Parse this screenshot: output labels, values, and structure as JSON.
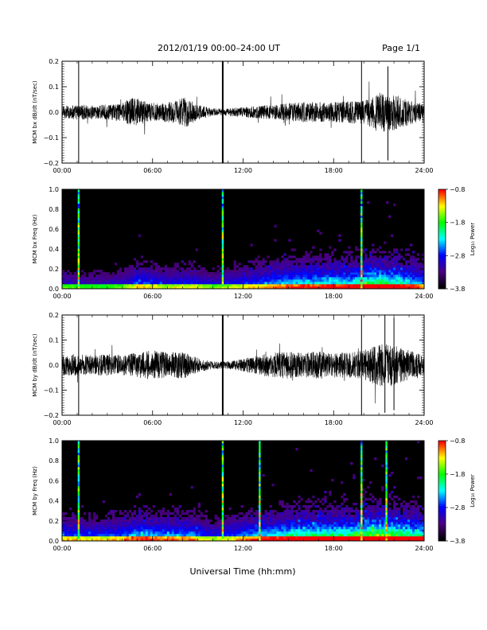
{
  "header": {
    "title": "2012/01/19   00:00–24:00 UT",
    "page_label": "Page 1/1"
  },
  "footer": {
    "xlabel": "Universal Time (hh:mm)"
  },
  "colors": {
    "trace": "#000000",
    "spectrogram_background": "#000000",
    "colormap": [
      "#000000",
      "#4b0082",
      "#0000ff",
      "#00ffff",
      "#00ff00",
      "#ffff00",
      "#ff0000"
    ]
  },
  "chart_data": [
    {
      "id": "bx_timeseries",
      "type": "line",
      "ylabel": "MCM bx dB/dt (nT/sec)",
      "xlim": [
        0,
        24
      ],
      "ylim": [
        -0.2,
        0.2
      ],
      "x_ticks": [
        "00:00",
        "06:00",
        "12:00",
        "18:00",
        "24:00"
      ],
      "y_ticks": [
        "0.2",
        "0.1",
        "0.0",
        "−0.1",
        "−0.2"
      ],
      "amplitude_envelope": [
        [
          0,
          0.025
        ],
        [
          1,
          0.03
        ],
        [
          2,
          0.028
        ],
        [
          3,
          0.03
        ],
        [
          4,
          0.035
        ],
        [
          4.6,
          0.06
        ],
        [
          5.2,
          0.05
        ],
        [
          5.8,
          0.04
        ],
        [
          6.5,
          0.035
        ],
        [
          7.5,
          0.045
        ],
        [
          8.2,
          0.06
        ],
        [
          9,
          0.03
        ],
        [
          10,
          0.015
        ],
        [
          11,
          0.015
        ],
        [
          12,
          0.02
        ],
        [
          13,
          0.025
        ],
        [
          14,
          0.03
        ],
        [
          15,
          0.035
        ],
        [
          16,
          0.04
        ],
        [
          17,
          0.04
        ],
        [
          18,
          0.04
        ],
        [
          19,
          0.045
        ],
        [
          20,
          0.045
        ],
        [
          21,
          0.08
        ],
        [
          22,
          0.07
        ],
        [
          23,
          0.05
        ],
        [
          24,
          0.03
        ]
      ],
      "spikes": [
        {
          "x": 1.1,
          "ymin": -0.2,
          "ymax": 0.2
        },
        {
          "x": 10.65,
          "ymin": -0.2,
          "ymax": 0.2
        },
        {
          "x": 19.85,
          "ymin": -0.2,
          "ymax": 0.2
        },
        {
          "x": 21.6,
          "ymin": -0.19,
          "ymax": 0.18
        }
      ]
    },
    {
      "id": "bx_spectrogram",
      "type": "heatmap",
      "ylabel": "MCM bx Freq (Hz)",
      "colorbar_label": "Log₁₀ Power",
      "color_range": [
        -3.8,
        -0.8
      ],
      "colorbar_ticks": [
        "−0.8",
        "−1.8",
        "−2.8",
        "−3.8"
      ],
      "xlim": [
        0,
        24
      ],
      "ylim": [
        0,
        1
      ],
      "x_ticks": [
        "00:00",
        "06:00",
        "12:00",
        "18:00",
        "24:00"
      ],
      "y_ticks": [
        "1.0",
        "0.8",
        "0.6",
        "0.4",
        "0.2",
        "0.0"
      ],
      "activity": [
        [
          0,
          0.3
        ],
        [
          2,
          0.25
        ],
        [
          4,
          0.3
        ],
        [
          5,
          0.45
        ],
        [
          7,
          0.35
        ],
        [
          8.5,
          0.4
        ],
        [
          10,
          0.3
        ],
        [
          11,
          0.35
        ],
        [
          13,
          0.45
        ],
        [
          15,
          0.55
        ],
        [
          17,
          0.6
        ],
        [
          19,
          0.6
        ],
        [
          20.5,
          0.75
        ],
        [
          22,
          0.7
        ],
        [
          24,
          0.5
        ]
      ],
      "spikes": [
        1.1,
        10.65,
        19.85
      ]
    },
    {
      "id": "by_timeseries",
      "type": "line",
      "ylabel": "MCM by dB/dt (nT/sec)",
      "xlim": [
        0,
        24
      ],
      "ylim": [
        -0.2,
        0.2
      ],
      "x_ticks": [
        "00:00",
        "06:00",
        "12:00",
        "18:00",
        "24:00"
      ],
      "y_ticks": [
        "0.2",
        "0.1",
        "0.0",
        "−0.1",
        "−0.2"
      ],
      "amplitude_envelope": [
        [
          0,
          0.04
        ],
        [
          1,
          0.045
        ],
        [
          2,
          0.04
        ],
        [
          3,
          0.045
        ],
        [
          4,
          0.04
        ],
        [
          5,
          0.05
        ],
        [
          6,
          0.06
        ],
        [
          7,
          0.05
        ],
        [
          8,
          0.055
        ],
        [
          9,
          0.03
        ],
        [
          10,
          0.015
        ],
        [
          11,
          0.015
        ],
        [
          12,
          0.025
        ],
        [
          13,
          0.04
        ],
        [
          14,
          0.05
        ],
        [
          15,
          0.055
        ],
        [
          16,
          0.05
        ],
        [
          17,
          0.055
        ],
        [
          18,
          0.05
        ],
        [
          19,
          0.05
        ],
        [
          20,
          0.06
        ],
        [
          21,
          0.085
        ],
        [
          22,
          0.08
        ],
        [
          23,
          0.06
        ],
        [
          24,
          0.045
        ]
      ],
      "spikes": [
        {
          "x": 1.1,
          "ymin": -0.2,
          "ymax": 0.2
        },
        {
          "x": 10.65,
          "ymin": -0.2,
          "ymax": 0.2
        },
        {
          "x": 19.85,
          "ymin": -0.2,
          "ymax": 0.2
        },
        {
          "x": 21.4,
          "ymin": -0.19,
          "ymax": 0.2
        },
        {
          "x": 22.0,
          "ymin": -0.18,
          "ymax": 0.19
        }
      ]
    },
    {
      "id": "by_spectrogram",
      "type": "heatmap",
      "ylabel": "MCM by Freq (Hz)",
      "colorbar_label": "Log₁₀ Power",
      "color_range": [
        -3.8,
        -0.8
      ],
      "colorbar_ticks": [
        "−0.8",
        "−1.8",
        "−2.8",
        "−3.8"
      ],
      "xlim": [
        0,
        24
      ],
      "ylim": [
        0,
        1
      ],
      "x_ticks": [
        "00:00",
        "06:00",
        "12:00",
        "18:00",
        "24:00"
      ],
      "y_ticks": [
        "1.0",
        "0.8",
        "0.6",
        "0.4",
        "0.2",
        "0.0"
      ],
      "activity": [
        [
          0,
          0.45
        ],
        [
          2,
          0.4
        ],
        [
          4,
          0.45
        ],
        [
          5,
          0.55
        ],
        [
          7,
          0.5
        ],
        [
          8.5,
          0.5
        ],
        [
          10,
          0.35
        ],
        [
          11,
          0.4
        ],
        [
          13,
          0.55
        ],
        [
          15,
          0.65
        ],
        [
          17,
          0.7
        ],
        [
          19,
          0.7
        ],
        [
          20.5,
          0.85
        ],
        [
          22,
          0.8
        ],
        [
          24,
          0.65
        ]
      ],
      "spikes": [
        1.1,
        10.65,
        13.1,
        19.85,
        21.5
      ]
    }
  ]
}
